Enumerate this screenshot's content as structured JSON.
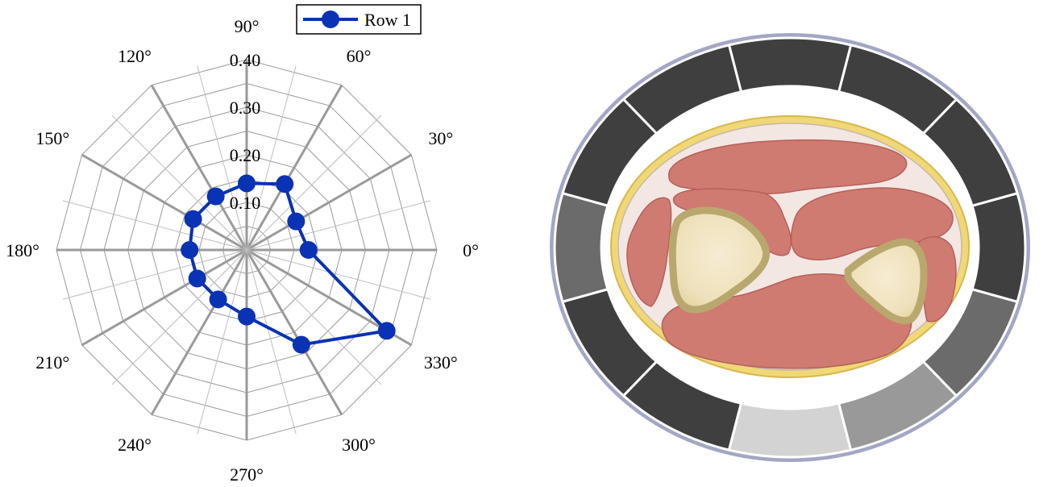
{
  "chart_data": [
    {
      "type": "radar",
      "title": "",
      "angles_deg": [
        0,
        30,
        60,
        90,
        120,
        150,
        180,
        210,
        240,
        270,
        300,
        330
      ],
      "angle_labels": [
        "0°",
        "30°",
        "60°",
        "90°",
        "120°",
        "150°",
        "180°",
        "210°",
        "240°",
        "270°",
        "300°",
        "330°"
      ],
      "radial_ticks": [
        0.1,
        0.2,
        0.3,
        0.4
      ],
      "radial_tick_labels": [
        "0.10",
        "0.20",
        "0.30",
        "0.40"
      ],
      "rlim": [
        0,
        0.4
      ],
      "grid": true,
      "legend_position": "top",
      "series": [
        {
          "name": "Row 1",
          "color": "#0a32b4",
          "values": [
            0.13,
            0.12,
            0.16,
            0.14,
            0.13,
            0.13,
            0.12,
            0.12,
            0.12,
            0.14,
            0.23,
            0.34
          ]
        }
      ]
    },
    {
      "type": "sector-ring",
      "sector_shades": [
        "#3f3f3f",
        "#3f3f3f",
        "#3f3f3f",
        "#3f3f3f",
        "#3f3f3f",
        "#3f3f3f",
        "#6b6b6b",
        "#3f3f3f",
        "#3f3f3f",
        "#d3d3d3",
        "#999999",
        "#6b6b6b"
      ],
      "ring_outline_color": "#a3a6c4"
    }
  ]
}
